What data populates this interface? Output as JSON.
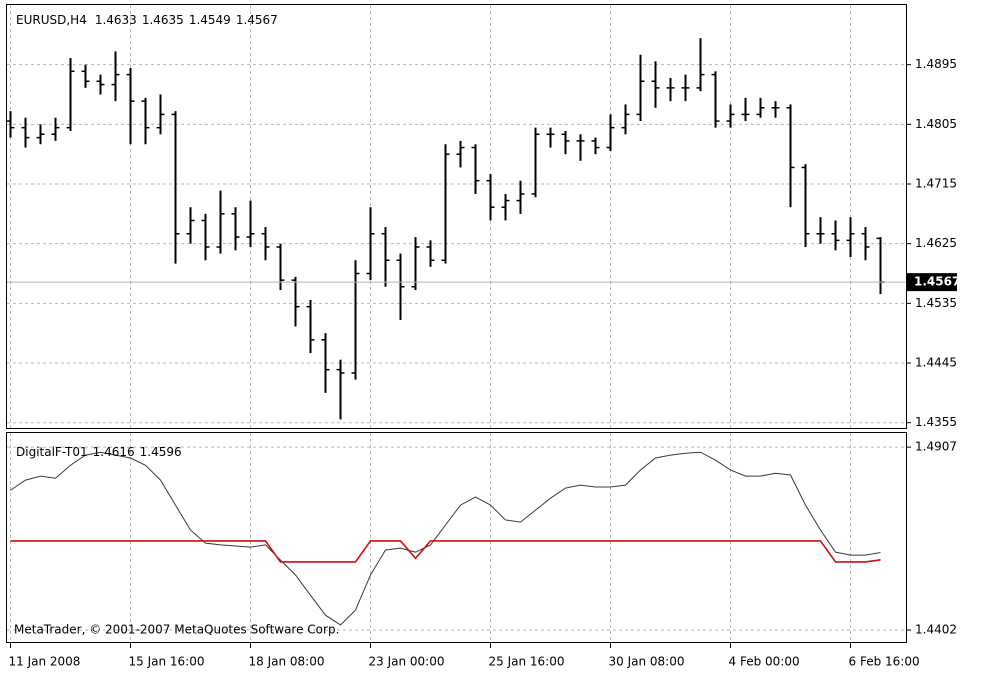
{
  "chart_data": [
    {
      "type": "ohlc",
      "title": "EURUSD,H4",
      "color": "#000000",
      "grid": true,
      "categories": [
        "11 Jan 2008",
        null,
        null,
        null,
        null,
        null,
        null,
        null,
        "15 Jan 16:00",
        null,
        null,
        null,
        null,
        null,
        null,
        null,
        "18 Jan 08:00",
        null,
        null,
        null,
        null,
        null,
        null,
        null,
        "23 Jan 00:00",
        null,
        null,
        null,
        null,
        null,
        null,
        null,
        "25 Jan 16:00",
        null,
        null,
        null,
        null,
        null,
        null,
        null,
        "30 Jan 08:00",
        null,
        null,
        null,
        null,
        null,
        null,
        null,
        "4 Feb 00:00",
        null,
        null,
        null,
        null,
        null,
        null,
        null,
        "6 Feb 16:00",
        null,
        null
      ],
      "open": [
        1.481,
        1.48,
        1.4785,
        1.479,
        1.48,
        1.4885,
        1.487,
        1.4865,
        1.488,
        1.484,
        1.48,
        1.482,
        1.464,
        1.466,
        1.462,
        1.467,
        1.4635,
        1.464,
        1.462,
        1.457,
        1.453,
        1.448,
        1.4435,
        1.443,
        1.458,
        1.464,
        1.46,
        1.456,
        1.462,
        1.46,
        1.476,
        1.477,
        1.472,
        1.468,
        1.469,
        1.47,
        1.479,
        1.479,
        1.478,
        1.478,
        1.477,
        1.48,
        1.482,
        1.487,
        1.486,
        1.486,
        1.486,
        1.488,
        1.481,
        1.482,
        1.482,
        1.483,
        1.483,
        1.474,
        1.464,
        1.464,
        1.463,
        1.464,
        1.4633
      ],
      "high": [
        1.4825,
        1.4815,
        1.4805,
        1.4815,
        1.4905,
        1.4895,
        1.488,
        1.4915,
        1.489,
        1.4845,
        1.485,
        1.4825,
        1.468,
        1.467,
        1.4705,
        1.468,
        1.469,
        1.465,
        1.4625,
        1.4575,
        1.454,
        1.449,
        1.445,
        1.46,
        1.468,
        1.465,
        1.461,
        1.4635,
        1.463,
        1.4775,
        1.478,
        1.4775,
        1.473,
        1.47,
        1.472,
        1.48,
        1.48,
        1.4795,
        1.479,
        1.4785,
        1.482,
        1.4835,
        1.491,
        1.49,
        1.4875,
        1.488,
        1.4935,
        1.4885,
        1.4835,
        1.4845,
        1.4845,
        1.484,
        1.4835,
        1.4745,
        1.4665,
        1.466,
        1.4665,
        1.465,
        1.4635
      ],
      "low": [
        1.4785,
        1.477,
        1.4775,
        1.478,
        1.4795,
        1.486,
        1.485,
        1.484,
        1.4775,
        1.4775,
        1.479,
        1.4595,
        1.4625,
        1.46,
        1.461,
        1.4615,
        1.462,
        1.46,
        1.4555,
        1.45,
        1.446,
        1.44,
        1.436,
        1.442,
        1.457,
        1.456,
        1.451,
        1.4555,
        1.459,
        1.4595,
        1.474,
        1.47,
        1.466,
        1.466,
        1.467,
        1.4695,
        1.477,
        1.476,
        1.475,
        1.476,
        1.4765,
        1.479,
        1.481,
        1.483,
        1.484,
        1.484,
        1.4855,
        1.48,
        1.48,
        1.481,
        1.4815,
        1.4815,
        1.468,
        1.462,
        1.4625,
        1.4615,
        1.4605,
        1.46,
        1.4549
      ],
      "close": [
        1.48,
        1.4785,
        1.479,
        1.48,
        1.4885,
        1.487,
        1.4865,
        1.488,
        1.484,
        1.48,
        1.482,
        1.464,
        1.466,
        1.462,
        1.467,
        1.4635,
        1.464,
        1.462,
        1.457,
        1.453,
        1.448,
        1.4435,
        1.443,
        1.458,
        1.464,
        1.46,
        1.456,
        1.462,
        1.46,
        1.476,
        1.477,
        1.472,
        1.468,
        1.469,
        1.47,
        1.479,
        1.479,
        1.478,
        1.478,
        1.477,
        1.48,
        1.482,
        1.487,
        1.486,
        1.486,
        1.486,
        1.488,
        1.481,
        1.482,
        1.482,
        1.483,
        1.483,
        1.474,
        1.464,
        1.464,
        1.463,
        1.464,
        1.462,
        1.4567
      ],
      "ylim": [
        1.4347,
        1.4985
      ],
      "yticks": [
        1.4895,
        1.4805,
        1.4715,
        1.4625,
        1.4535,
        1.4445,
        1.4355
      ]
    },
    {
      "type": "line",
      "title": "DigitalF-T01",
      "grid": true,
      "copyright": "MetaTrader, © 2001-2007 MetaQuotes Software Corp.",
      "series": [
        {
          "color": "#3a3a3a",
          "values": [
            1.4788,
            1.4816,
            1.4827,
            1.4821,
            1.4857,
            1.4885,
            1.4893,
            1.4885,
            1.4877,
            1.4857,
            1.4816,
            1.4747,
            1.4678,
            1.4642,
            1.4637,
            1.4634,
            1.4631,
            1.4637,
            1.4595,
            1.4554,
            1.4498,
            1.4443,
            1.4416,
            1.4457,
            1.4554,
            1.4623,
            1.4628,
            1.4617,
            1.4637,
            1.4692,
            1.4747,
            1.4769,
            1.4747,
            1.4706,
            1.47,
            1.4733,
            1.4766,
            1.4794,
            1.4802,
            1.4797,
            1.4797,
            1.4802,
            1.4844,
            1.4877,
            1.4885,
            1.489,
            1.4893,
            1.4871,
            1.4844,
            1.4827,
            1.4827,
            1.4835,
            1.483,
            1.4747,
            1.4678,
            1.4617,
            1.4609,
            1.4609,
            1.4616
          ]
        },
        {
          "color": "#cc1111",
          "values": [
            1.4648,
            1.4648,
            1.4648,
            1.4648,
            1.4648,
            1.4648,
            1.4648,
            1.4648,
            1.4648,
            1.4648,
            1.4648,
            1.4648,
            1.4648,
            1.4648,
            1.4648,
            1.4648,
            1.4648,
            1.4648,
            1.459,
            1.459,
            1.459,
            1.459,
            1.459,
            1.459,
            1.4648,
            1.4648,
            1.4648,
            1.46,
            1.4648,
            1.4648,
            1.4648,
            1.4648,
            1.4648,
            1.4648,
            1.4648,
            1.4648,
            1.4648,
            1.4648,
            1.4648,
            1.4648,
            1.4648,
            1.4648,
            1.4648,
            1.4648,
            1.4648,
            1.4648,
            1.4648,
            1.4648,
            1.4648,
            1.4648,
            1.4648,
            1.4648,
            1.4648,
            1.4648,
            1.4648,
            1.459,
            1.459,
            1.459,
            1.4596
          ]
        }
      ],
      "ylim": [
        1.4369,
        1.4946
      ],
      "yticks": [
        1.4907,
        1.4402
      ]
    }
  ]
}
